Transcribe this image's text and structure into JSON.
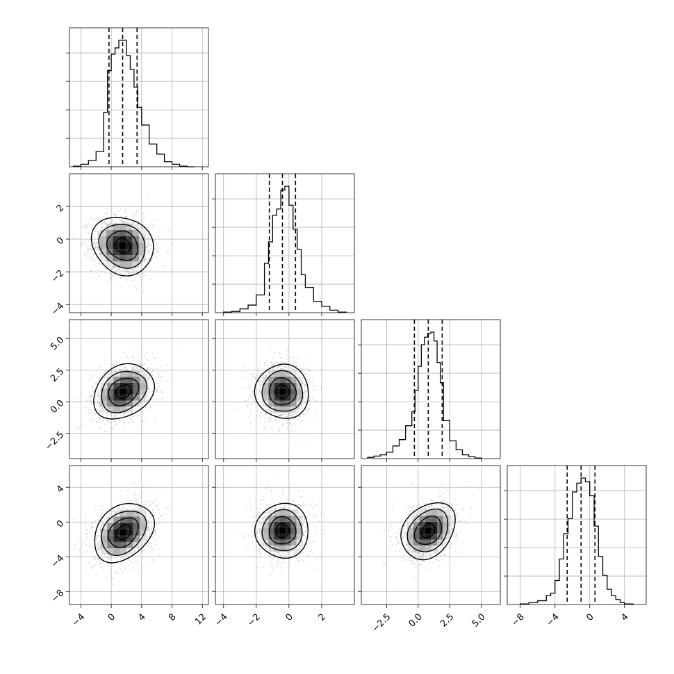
{
  "chart_data": {
    "type": "corner",
    "parameters": [
      {
        "range": [
          -5.5,
          12.8
        ],
        "ticks": [
          -4,
          0,
          4,
          8,
          12
        ],
        "tick_labels": [
          "−4",
          "0",
          "4",
          "8",
          "12"
        ],
        "quantiles": [
          -0.3,
          1.5,
          3.4
        ],
        "histogram": {
          "bin_edges": [
            -5.0,
            -4.0,
            -3.0,
            -2.0,
            -1.0,
            -0.5,
            0.0,
            0.5,
            1.0,
            1.5,
            2.0,
            2.5,
            3.0,
            3.5,
            4.0,
            5.0,
            6.0,
            7.0,
            8.0,
            9.0,
            10.0,
            11.0
          ],
          "counts": [
            0.005,
            0.02,
            0.05,
            0.12,
            0.43,
            0.76,
            0.89,
            0.94,
            1.0,
            1.0,
            0.88,
            0.77,
            0.63,
            0.47,
            0.33,
            0.18,
            0.1,
            0.04,
            0.02,
            0.005,
            0.0
          ]
        }
      },
      {
        "range": [
          -4.5,
          4.0
        ],
        "ticks": [
          -4,
          -2,
          0,
          2
        ],
        "tick_labels": [
          "−4",
          "−2",
          "0",
          "2"
        ],
        "quantiles": [
          -1.2,
          -0.4,
          0.4
        ],
        "histogram": {
          "bin_edges": [
            -4.0,
            -3.5,
            -3.0,
            -2.5,
            -2.0,
            -1.5,
            -1.25,
            -1.0,
            -0.75,
            -0.5,
            -0.25,
            0.0,
            0.25,
            0.5,
            0.75,
            1.0,
            1.5,
            2.0,
            2.5,
            3.0,
            3.5
          ],
          "counts": [
            0.005,
            0.01,
            0.03,
            0.06,
            0.14,
            0.39,
            0.56,
            0.77,
            0.82,
            0.97,
            1.0,
            0.85,
            0.66,
            0.5,
            0.3,
            0.2,
            0.09,
            0.05,
            0.02,
            0.005
          ]
        }
      },
      {
        "range": [
          -4.5,
          6.5
        ],
        "ticks": [
          -2.5,
          0.0,
          2.5,
          5.0
        ],
        "tick_labels": [
          "−2.5",
          "0.0",
          "2.5",
          "5.0"
        ],
        "quantiles": [
          -0.3,
          0.8,
          1.9
        ],
        "histogram": {
          "bin_edges": [
            -4.0,
            -3.5,
            -3.0,
            -2.5,
            -2.0,
            -1.5,
            -1.0,
            -0.5,
            -0.25,
            0.0,
            0.25,
            0.5,
            0.75,
            1.0,
            1.25,
            1.5,
            1.75,
            2.0,
            2.5,
            3.0,
            3.5,
            4.0,
            4.5,
            5.0
          ],
          "counts": [
            0.01,
            0.02,
            0.03,
            0.05,
            0.1,
            0.15,
            0.26,
            0.37,
            0.54,
            0.73,
            0.9,
            0.96,
            0.99,
            1.0,
            0.93,
            0.76,
            0.6,
            0.3,
            0.14,
            0.07,
            0.03,
            0.015,
            0.005
          ]
        }
      },
      {
        "range": [
          -9.5,
          6.5
        ],
        "ticks": [
          -8,
          -4,
          0,
          4
        ],
        "tick_labels": [
          "−8",
          "−4",
          "0",
          "4"
        ],
        "quantiles": [
          -2.6,
          -1.0,
          0.6
        ],
        "histogram": {
          "bin_edges": [
            -8.0,
            -7.0,
            -6.0,
            -5.0,
            -4.5,
            -4.0,
            -3.5,
            -3.0,
            -2.5,
            -2.0,
            -1.5,
            -1.0,
            -0.5,
            0.0,
            0.5,
            1.0,
            1.5,
            2.0,
            2.5,
            3.0,
            3.5,
            4.0,
            5.0
          ],
          "counts": [
            0.005,
            0.015,
            0.03,
            0.07,
            0.09,
            0.19,
            0.36,
            0.56,
            0.68,
            0.89,
            0.96,
            1.0,
            0.97,
            0.86,
            0.62,
            0.38,
            0.23,
            0.12,
            0.07,
            0.04,
            0.015,
            0.005
          ]
        }
      }
    ],
    "pairs": [
      {
        "x": 0,
        "y": 1,
        "center": [
          1.5,
          -0.4
        ],
        "sigma": [
          2.0,
          0.9
        ],
        "rho": -0.1
      },
      {
        "x": 0,
        "y": 2,
        "center": [
          1.6,
          0.8
        ],
        "sigma": [
          2.0,
          1.1
        ],
        "rho": 0.3
      },
      {
        "x": 1,
        "y": 2,
        "center": [
          -0.4,
          0.8
        ],
        "sigma": [
          0.8,
          1.1
        ],
        "rho": -0.05
      },
      {
        "x": 0,
        "y": 3,
        "center": [
          1.6,
          -1.2
        ],
        "sigma": [
          2.0,
          1.7
        ],
        "rho": 0.35
      },
      {
        "x": 1,
        "y": 3,
        "center": [
          -0.4,
          -1.0
        ],
        "sigma": [
          0.8,
          1.6
        ],
        "rho": 0.05
      },
      {
        "x": 2,
        "y": 3,
        "center": [
          0.8,
          -1.0
        ],
        "sigma": [
          1.1,
          1.6
        ],
        "rho": 0.3
      }
    ],
    "contour_levels_sigma": [
      0.5,
      1.0,
      1.5,
      2.0
    ],
    "grid": true,
    "colors": {
      "line": "#000000",
      "grid": "#b0b0b0",
      "scatter": "#a0a0a0",
      "background": "#ffffff"
    }
  }
}
